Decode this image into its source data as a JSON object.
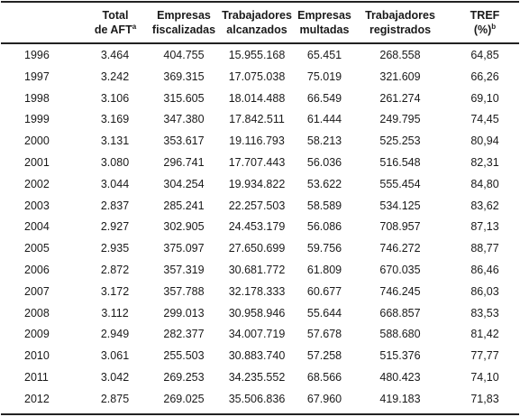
{
  "table": {
    "headers": {
      "year": "",
      "aft_line1": "Total",
      "aft_line2": "de AFT",
      "aft_mark": "a",
      "emp_line1": "Empresas",
      "emp_line2": "fiscalizadas",
      "trab_line1": "Trabajadores",
      "trab_line2": "alcanzados",
      "mult_line1": "Empresas",
      "mult_line2": "multadas",
      "reg_line1": "Trabajadores",
      "reg_line2": "registrados",
      "tref_line1": "TREF",
      "tref_line2": "(%)",
      "tref_mark": "b"
    },
    "rows": [
      {
        "year": "1996",
        "aft": "3.464",
        "emp": "404.755",
        "trab": "15.955.168",
        "mult": "65.451",
        "reg": "268.558",
        "tref": "64,85"
      },
      {
        "year": "1997",
        "aft": "3.242",
        "emp": "369.315",
        "trab": "17.075.038",
        "mult": "75.019",
        "reg": "321.609",
        "tref": "66,26"
      },
      {
        "year": "1998",
        "aft": "3.106",
        "emp": "315.605",
        "trab": "18.014.488",
        "mult": "66.549",
        "reg": "261.274",
        "tref": "69,10"
      },
      {
        "year": "1999",
        "aft": "3.169",
        "emp": "347.380",
        "trab": "17.842.511",
        "mult": "61.444",
        "reg": "249.795",
        "tref": "74,45"
      },
      {
        "year": "2000",
        "aft": "3.131",
        "emp": "353.617",
        "trab": "19.116.793",
        "mult": "58.213",
        "reg": "525.253",
        "tref": "80,94"
      },
      {
        "year": "2001",
        "aft": "3.080",
        "emp": "296.741",
        "trab": "17.707.443",
        "mult": "56.036",
        "reg": "516.548",
        "tref": "82,31"
      },
      {
        "year": "2002",
        "aft": "3.044",
        "emp": "304.254",
        "trab": "19.934.822",
        "mult": "53.622",
        "reg": "555.454",
        "tref": "84,80"
      },
      {
        "year": "2003",
        "aft": "2.837",
        "emp": "285.241",
        "trab": "22.257.503",
        "mult": "58.589",
        "reg": "534.125",
        "tref": "83,62"
      },
      {
        "year": "2004",
        "aft": "2.927",
        "emp": "302.905",
        "trab": "24.453.179",
        "mult": "56.086",
        "reg": "708.957",
        "tref": "87,13"
      },
      {
        "year": "2005",
        "aft": "2.935",
        "emp": "375.097",
        "trab": "27.650.699",
        "mult": "59.756",
        "reg": "746.272",
        "tref": "88,77"
      },
      {
        "year": "2006",
        "aft": "2.872",
        "emp": "357.319",
        "trab": "30.681.772",
        "mult": "61.809",
        "reg": "670.035",
        "tref": "86,46"
      },
      {
        "year": "2007",
        "aft": "3.172",
        "emp": "357.788",
        "trab": "32.178.333",
        "mult": "60.677",
        "reg": "746.245",
        "tref": "86,03"
      },
      {
        "year": "2008",
        "aft": "3.112",
        "emp": "299.013",
        "trab": "30.958.946",
        "mult": "55.644",
        "reg": "668.857",
        "tref": "83,53"
      },
      {
        "year": "2009",
        "aft": "2.949",
        "emp": "282.377",
        "trab": "34.007.719",
        "mult": "57.678",
        "reg": "588.680",
        "tref": "81,42"
      },
      {
        "year": "2010",
        "aft": "3.061",
        "emp": "255.503",
        "trab": "30.883.740",
        "mult": "57.258",
        "reg": "515.376",
        "tref": "77,77"
      },
      {
        "year": "2011",
        "aft": "3.042",
        "emp": "269.253",
        "trab": "34.235.552",
        "mult": "68.566",
        "reg": "480.423",
        "tref": "74,10"
      },
      {
        "year": "2012",
        "aft": "2.875",
        "emp": "269.025",
        "trab": "35.506.836",
        "mult": "67.960",
        "reg": "419.183",
        "tref": "71,83"
      }
    ]
  }
}
